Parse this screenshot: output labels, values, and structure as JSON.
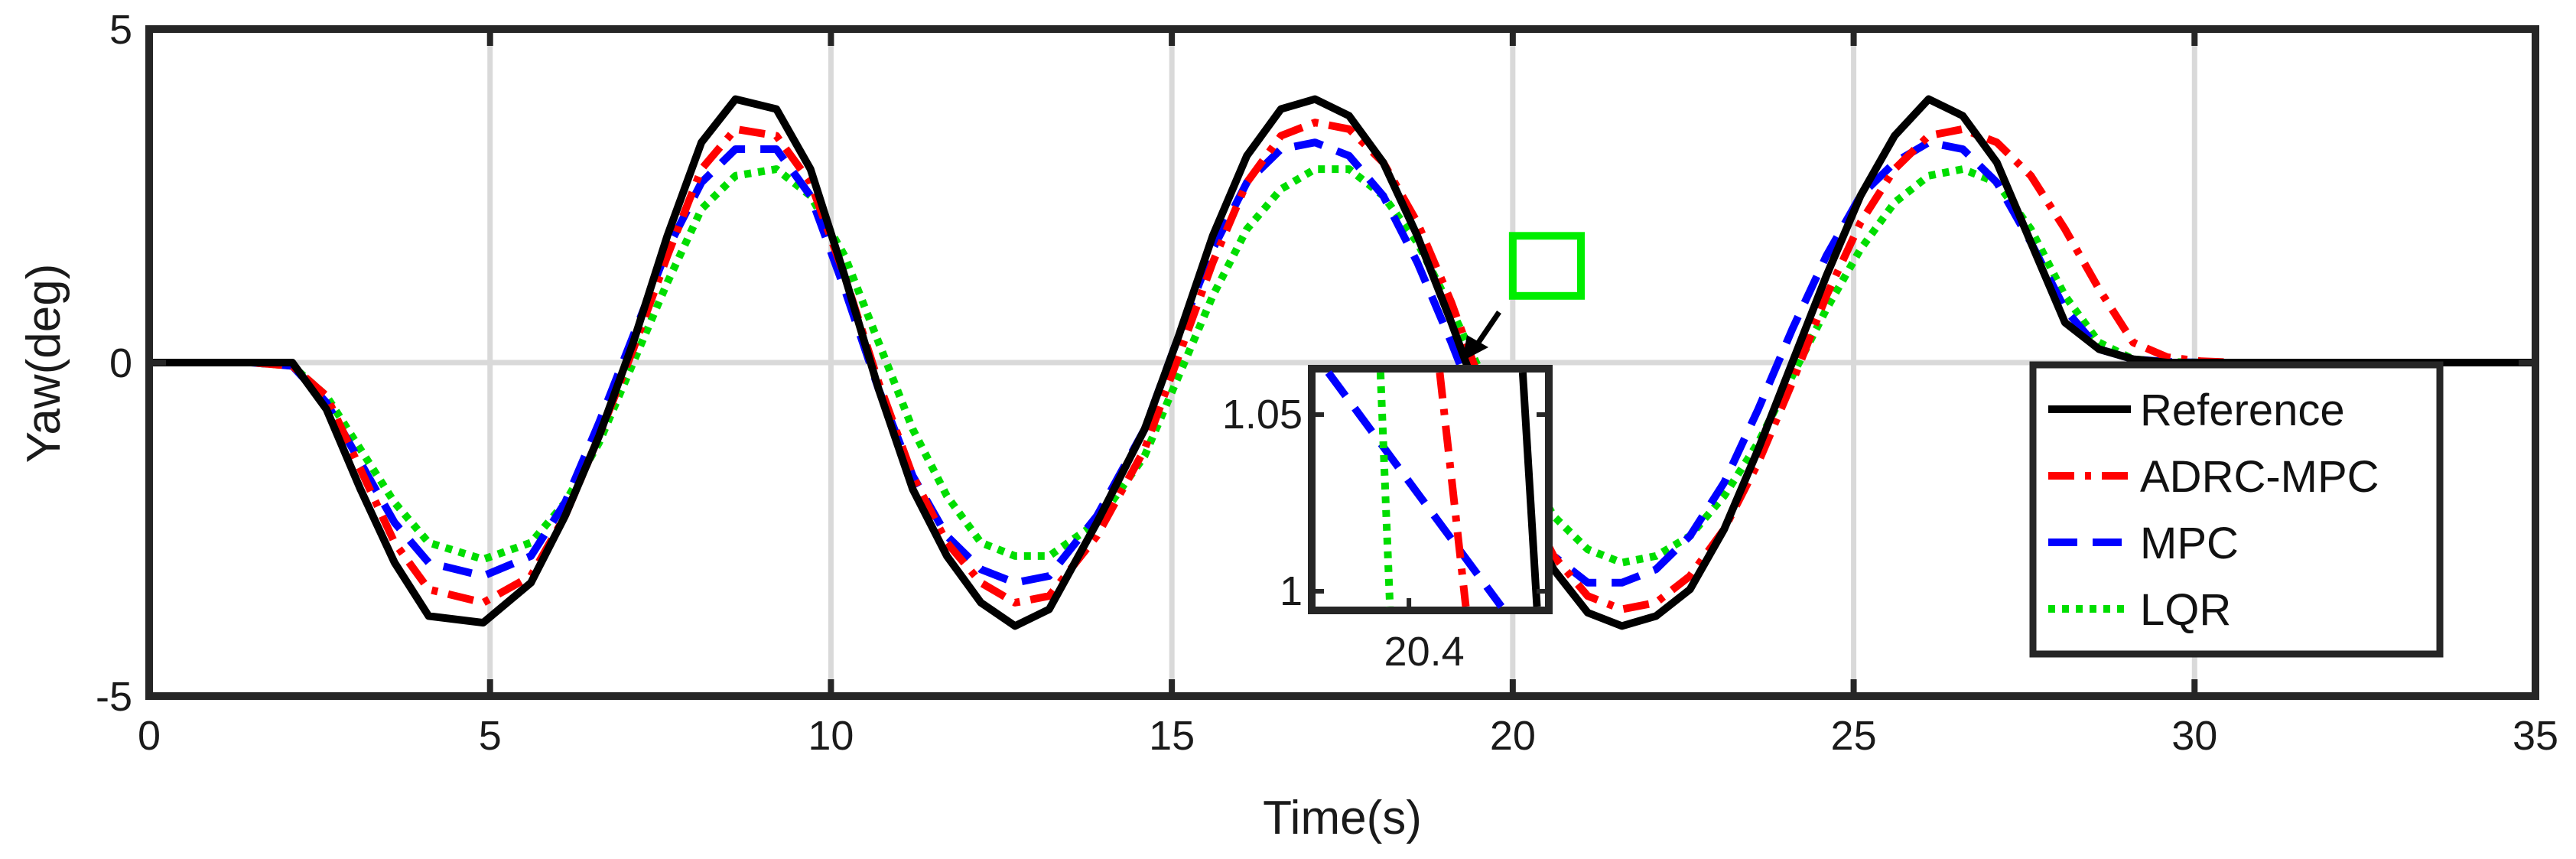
{
  "chart_data": {
    "type": "line",
    "title": "",
    "xlabel": "Time(s)",
    "ylabel": "Yaw(deg)",
    "xlim": [
      0,
      35
    ],
    "ylim": [
      -5,
      5
    ],
    "xticks": [
      0,
      5,
      10,
      15,
      20,
      25,
      30,
      35
    ],
    "yticks": [
      -5,
      0,
      5
    ],
    "xtick_labels": [
      "0",
      "5",
      "10",
      "15",
      "20",
      "25",
      "30",
      "35"
    ],
    "ytick_labels": [
      "-5",
      "0",
      "5"
    ],
    "grid": true,
    "legend_position": "bottom-right",
    "series": [
      {
        "name": "Reference",
        "color": "#000000",
        "style": "solid",
        "x": [
          0,
          1.5,
          2.1,
          2.6,
          3.1,
          3.6,
          4.1,
          4.9,
          5.6,
          6.1,
          6.6,
          7.1,
          7.6,
          8.1,
          8.6,
          9.2,
          9.7,
          10.2,
          10.7,
          11.2,
          11.7,
          12.2,
          12.7,
          13.2,
          13.9,
          14.6,
          15.1,
          15.6,
          16.1,
          16.6,
          17.1,
          17.6,
          18.1,
          18.6,
          19.1,
          19.6,
          20.1,
          20.6,
          21.1,
          21.6,
          22.1,
          22.6,
          23.1,
          23.6,
          24.1,
          24.6,
          25.1,
          25.6,
          26.1,
          26.6,
          27.1,
          27.6,
          28.1,
          28.6,
          29.1,
          29.6,
          30.1,
          30.6,
          31.1,
          31.6,
          32.1,
          33.0,
          35
        ],
        "values": [
          0,
          0,
          0,
          -0.7,
          -1.9,
          -3.0,
          -3.8,
          -3.9,
          -3.3,
          -2.3,
          -1.1,
          0.3,
          1.9,
          3.3,
          3.95,
          3.8,
          2.9,
          1.3,
          -0.4,
          -1.9,
          -2.9,
          -3.6,
          -3.95,
          -3.7,
          -2.4,
          -1.0,
          0.4,
          1.9,
          3.1,
          3.8,
          3.95,
          3.7,
          3.0,
          1.9,
          0.6,
          -0.8,
          -2.1,
          -3.1,
          -3.75,
          -3.95,
          -3.8,
          -3.4,
          -2.5,
          -1.3,
          0.0,
          1.3,
          2.5,
          3.4,
          3.95,
          3.7,
          3.0,
          1.8,
          0.6,
          0.2,
          0.05,
          0,
          0,
          0,
          0,
          0,
          0,
          0,
          0
        ]
      },
      {
        "name": "ADRC-MPC",
        "color": "#ff0000",
        "style": "dashdot",
        "x": [
          0,
          1.5,
          2.1,
          2.6,
          3.1,
          3.6,
          4.1,
          4.9,
          5.6,
          6.1,
          6.6,
          7.1,
          7.6,
          8.1,
          8.6,
          9.2,
          9.7,
          10.2,
          10.7,
          11.2,
          11.7,
          12.2,
          12.7,
          13.2,
          13.9,
          14.6,
          15.1,
          15.6,
          16.1,
          16.6,
          17.1,
          17.6,
          18.1,
          18.6,
          19.1,
          19.6,
          20.1,
          20.6,
          21.1,
          21.6,
          22.1,
          22.6,
          23.1,
          23.6,
          24.1,
          24.6,
          25.1,
          25.6,
          26.1,
          26.6,
          27.1,
          27.6,
          28.1,
          28.6,
          29.1,
          29.6,
          30.1,
          30.6,
          31.1,
          31.6,
          32.1,
          33.0,
          35
        ],
        "values": [
          0,
          0,
          -0.05,
          -0.5,
          -1.6,
          -2.7,
          -3.4,
          -3.6,
          -3.2,
          -2.3,
          -1.1,
          0.2,
          1.6,
          2.9,
          3.5,
          3.4,
          2.7,
          1.3,
          -0.3,
          -1.7,
          -2.7,
          -3.3,
          -3.6,
          -3.5,
          -2.6,
          -1.3,
          0.1,
          1.5,
          2.7,
          3.4,
          3.6,
          3.5,
          3.0,
          2.1,
          0.9,
          -0.5,
          -1.9,
          -2.9,
          -3.5,
          -3.7,
          -3.6,
          -3.2,
          -2.5,
          -1.5,
          -0.3,
          1.0,
          2.1,
          2.9,
          3.4,
          3.5,
          3.3,
          2.8,
          2.0,
          1.1,
          0.3,
          0.08,
          0.02,
          0,
          0,
          0,
          0,
          0,
          0
        ]
      },
      {
        "name": "MPC",
        "color": "#0000ff",
        "style": "dashed",
        "x": [
          0,
          1.5,
          2.1,
          2.6,
          3.1,
          3.6,
          4.1,
          4.9,
          5.6,
          6.1,
          6.6,
          7.1,
          7.6,
          8.1,
          8.6,
          9.2,
          9.7,
          10.2,
          10.7,
          11.2,
          11.7,
          12.2,
          12.7,
          13.2,
          13.9,
          14.6,
          15.1,
          15.6,
          16.1,
          16.6,
          17.1,
          17.6,
          18.1,
          18.6,
          19.1,
          19.6,
          20.1,
          20.6,
          21.1,
          21.6,
          22.1,
          22.6,
          23.1,
          23.6,
          24.1,
          24.6,
          25.1,
          25.6,
          26.1,
          26.6,
          27.1,
          27.6,
          28.1,
          28.6,
          29.1,
          29.6,
          30.1,
          30.6,
          31.1,
          31.6,
          32.1,
          33.0,
          35
        ],
        "values": [
          0,
          0,
          -0.05,
          -0.6,
          -1.5,
          -2.4,
          -3.0,
          -3.2,
          -2.9,
          -2.1,
          -0.9,
          0.4,
          1.7,
          2.7,
          3.2,
          3.2,
          2.5,
          1.1,
          -0.4,
          -1.7,
          -2.6,
          -3.1,
          -3.3,
          -3.2,
          -2.3,
          -1.0,
          0.4,
          1.7,
          2.7,
          3.2,
          3.3,
          3.1,
          2.5,
          1.5,
          0.3,
          -1.0,
          -2.1,
          -2.9,
          -3.3,
          -3.3,
          -3.1,
          -2.6,
          -1.8,
          -0.7,
          0.5,
          1.6,
          2.5,
          3.0,
          3.3,
          3.2,
          2.7,
          1.8,
          0.8,
          0.2,
          0.05,
          0.01,
          0,
          0,
          0,
          0,
          0,
          0,
          0
        ]
      },
      {
        "name": "LQR",
        "color": "#00dd00",
        "style": "dotted",
        "x": [
          0,
          1.5,
          2.1,
          2.6,
          3.1,
          3.6,
          4.1,
          4.9,
          5.6,
          6.1,
          6.6,
          7.1,
          7.6,
          8.1,
          8.6,
          9.2,
          9.7,
          10.2,
          10.7,
          11.2,
          11.7,
          12.2,
          12.7,
          13.2,
          13.9,
          14.6,
          15.1,
          15.6,
          16.1,
          16.6,
          17.1,
          17.6,
          18.1,
          18.6,
          19.1,
          19.6,
          20.1,
          20.6,
          21.1,
          21.6,
          22.1,
          22.6,
          23.1,
          23.6,
          24.1,
          24.6,
          25.1,
          25.6,
          26.1,
          26.6,
          27.1,
          27.6,
          28.1,
          28.6,
          29.1,
          29.6,
          30.1,
          30.6,
          31.1,
          31.6,
          32.1,
          33.0,
          35
        ],
        "values": [
          0,
          0,
          -0.05,
          -0.5,
          -1.3,
          -2.1,
          -2.7,
          -2.95,
          -2.7,
          -2.1,
          -1.2,
          0.0,
          1.2,
          2.3,
          2.8,
          2.9,
          2.5,
          1.6,
          0.3,
          -1.0,
          -2.0,
          -2.7,
          -2.9,
          -2.9,
          -2.4,
          -1.4,
          -0.2,
          1.0,
          2.0,
          2.6,
          2.9,
          2.9,
          2.5,
          1.8,
          0.8,
          -0.3,
          -1.4,
          -2.3,
          -2.8,
          -3.0,
          -2.9,
          -2.6,
          -2.0,
          -1.2,
          -0.2,
          0.8,
          1.7,
          2.4,
          2.8,
          2.9,
          2.7,
          2.0,
          1.0,
          0.3,
          0.05,
          0.01,
          0,
          0,
          0,
          0,
          0,
          0,
          0
        ]
      }
    ],
    "inset": {
      "target_box_xlim": [
        20.0,
        21.0
      ],
      "target_box_ylim": [
        1.0,
        1.9
      ],
      "xtick_labels": [
        "20.4"
      ],
      "ytick_labels": [
        "1.05",
        "1"
      ],
      "lines": [
        {
          "name": "MPC",
          "color": "#0000ff",
          "style": "dashed",
          "top": 0.07,
          "bottom": 0.8
        },
        {
          "name": "LQR",
          "color": "#00dd00",
          "style": "dotted",
          "top": 0.29,
          "bottom": 0.33
        },
        {
          "name": "ADRC-MPC",
          "color": "#ff0000",
          "style": "dashdot",
          "top": 0.54,
          "bottom": 0.65
        },
        {
          "name": "Reference",
          "color": "#000000",
          "style": "solid",
          "top": 0.89,
          "bottom": 0.95
        }
      ]
    }
  }
}
